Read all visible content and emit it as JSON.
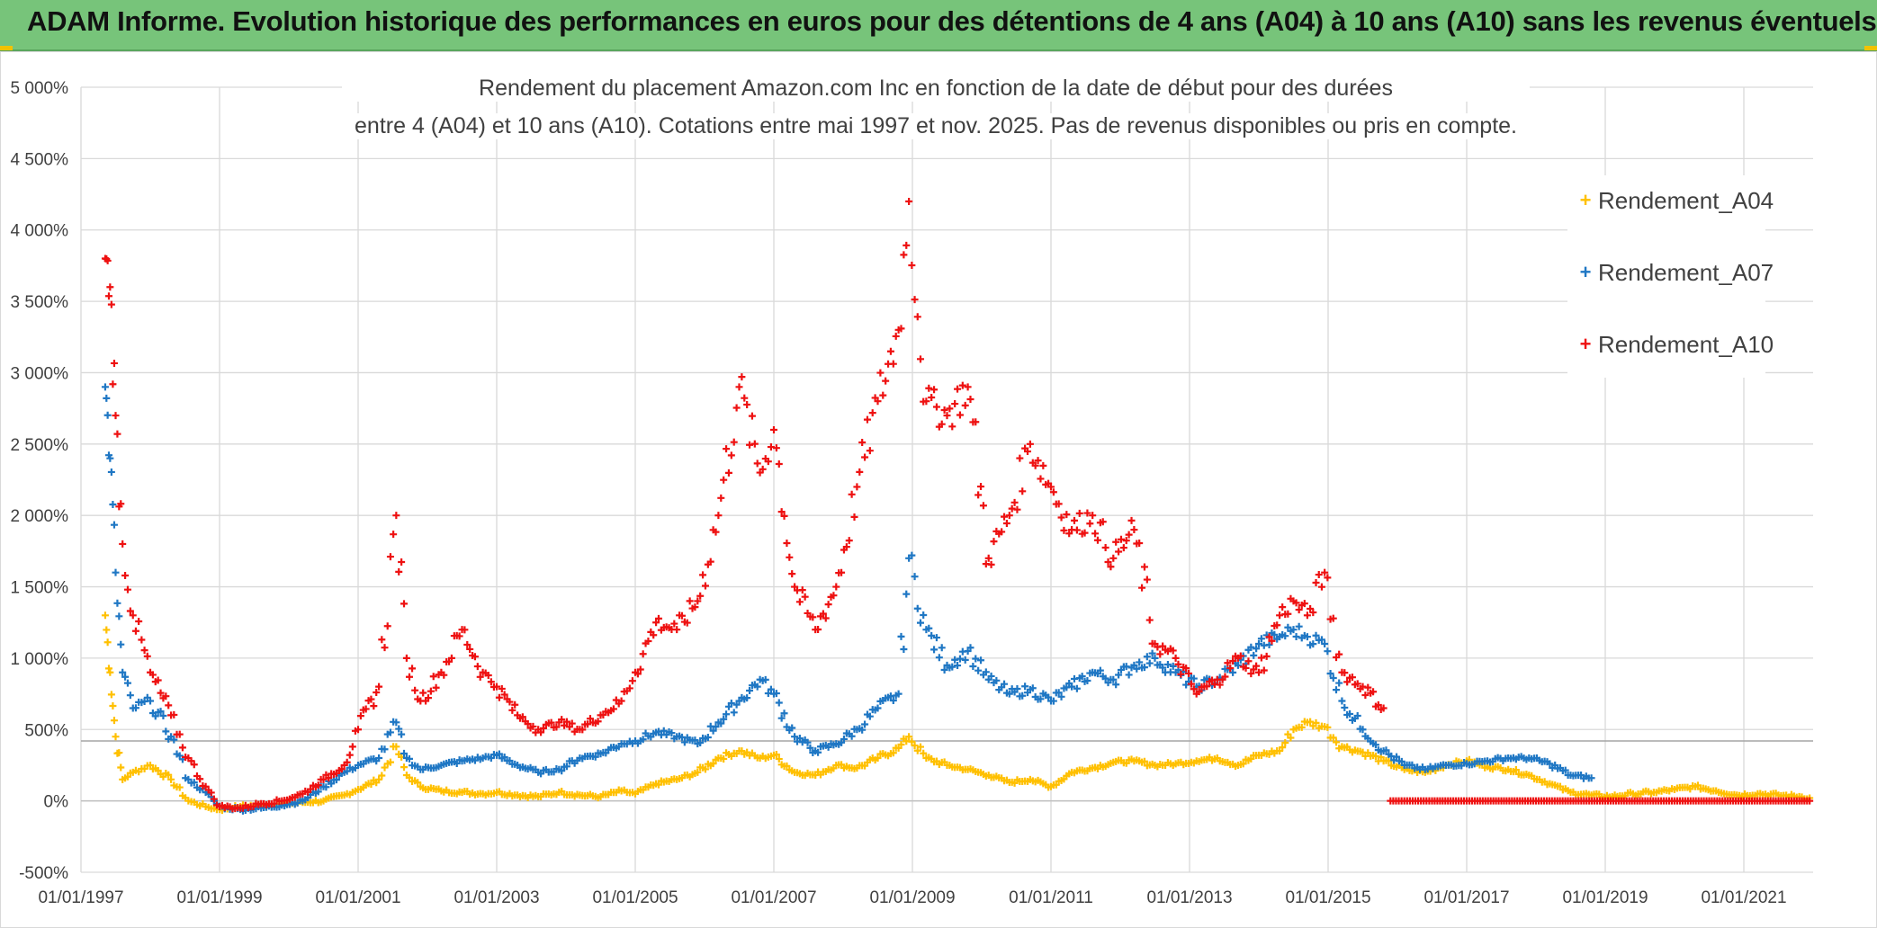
{
  "header": {
    "banner_title": "ADAM Informe. Evolution historique des performances en euros pour des détentions de 4 ans (A04) à 10 ans (A10) sans les revenus éventuels",
    "banner_color": "#77c47a"
  },
  "chart_data": {
    "type": "scatter",
    "title_line1": "Rendement du placement Amazon.com Inc en fonction de la date de début pour des durées",
    "title_line2": "entre 4 (A04) et 10 ans (A10). Cotations entre mai 1997 et nov. 2025. Pas de revenus disponibles ou pris en compte.",
    "xlabel": "",
    "ylabel": "",
    "x_tick_labels": [
      "01/01/1997",
      "01/01/1999",
      "01/01/2001",
      "01/01/2003",
      "01/01/2005",
      "01/01/2007",
      "01/01/2009",
      "01/01/2011",
      "01/01/2013",
      "01/01/2015",
      "01/01/2017",
      "01/01/2019",
      "01/01/2021"
    ],
    "y_tick_labels": [
      "-500%",
      "0%",
      "500%",
      "1 000%",
      "1 500%",
      "2 000%",
      "2 500%",
      "3 000%",
      "3 500%",
      "4 000%",
      "4 500%",
      "5 000%"
    ],
    "xlim": [
      1997.0,
      2022.0
    ],
    "ylim": [
      -500,
      5000
    ],
    "grid": true,
    "legend_position": "top-right",
    "series": [
      {
        "name": "Rendement_A04",
        "color": "#ffc000",
        "x": [
          1997.35,
          1997.42,
          1997.5,
          1997.6,
          1997.75,
          1998.0,
          1998.3,
          1998.55,
          1998.8,
          1999.0,
          1999.3,
          1999.6,
          1999.9,
          2000.2,
          2000.5,
          2000.8,
          2001.0,
          2001.3,
          2001.55,
          2001.7,
          2001.9,
          2002.2,
          2002.5,
          2002.8,
          2003.0,
          2003.3,
          2003.6,
          2003.9,
          2004.2,
          2004.5,
          2004.8,
          2005.0,
          2005.3,
          2005.6,
          2005.9,
          2006.2,
          2006.5,
          2006.8,
          2007.0,
          2007.3,
          2007.6,
          2007.9,
          2008.2,
          2008.5,
          2008.8,
          2008.95,
          2009.2,
          2009.5,
          2009.8,
          2010.1,
          2010.4,
          2010.7,
          2011.0,
          2011.3,
          2011.6,
          2011.9,
          2012.2,
          2012.5,
          2012.8,
          2013.1,
          2013.4,
          2013.7,
          2014.0,
          2014.3,
          2014.5,
          2014.7,
          2014.95,
          2015.2,
          2015.5,
          2015.8,
          2016.1,
          2016.4,
          2016.7,
          2017.0,
          2017.3,
          2017.6,
          2017.9,
          2018.2,
          2018.5,
          2018.8,
          2019.1,
          2019.4,
          2019.7,
          2020.0,
          2020.3,
          2020.6,
          2020.9,
          2021.2,
          2021.5,
          2021.8,
          2021.95
        ],
        "y": [
          1300,
          900,
          450,
          150,
          200,
          250,
          150,
          0,
          -40,
          -60,
          -40,
          -30,
          -20,
          -10,
          0,
          40,
          80,
          150,
          380,
          180,
          100,
          70,
          60,
          50,
          60,
          40,
          30,
          60,
          40,
          30,
          70,
          50,
          120,
          150,
          200,
          300,
          350,
          300,
          320,
          200,
          180,
          250,
          230,
          300,
          370,
          450,
          300,
          250,
          220,
          180,
          130,
          150,
          100,
          200,
          230,
          270,
          280,
          250,
          260,
          280,
          300,
          250,
          320,
          350,
          500,
          550,
          520,
          380,
          340,
          280,
          220,
          200,
          250,
          280,
          240,
          220,
          180,
          120,
          60,
          40,
          30,
          50,
          60,
          80,
          100,
          70,
          40,
          50,
          40,
          30,
          20
        ]
      },
      {
        "name": "Rendement_A07",
        "color": "#1f77c4",
        "x": [
          1997.35,
          1997.42,
          1997.5,
          1997.6,
          1997.75,
          1998.0,
          1998.3,
          1998.55,
          1998.8,
          1999.0,
          1999.3,
          1999.6,
          1999.9,
          2000.2,
          2000.5,
          2000.8,
          2001.0,
          2001.3,
          2001.55,
          2001.7,
          2001.9,
          2002.2,
          2002.5,
          2002.8,
          2003.0,
          2003.3,
          2003.6,
          2003.9,
          2004.2,
          2004.5,
          2004.8,
          2005.0,
          2005.3,
          2005.6,
          2005.9,
          2006.2,
          2006.5,
          2006.8,
          2007.0,
          2007.3,
          2007.6,
          2007.9,
          2008.2,
          2008.5,
          2008.8,
          2008.95,
          2009.2,
          2009.5,
          2009.8,
          2010.1,
          2010.4,
          2010.7,
          2011.0,
          2011.3,
          2011.6,
          2011.9,
          2012.2,
          2012.5,
          2012.8,
          2013.1,
          2013.4,
          2013.7,
          2014.0,
          2014.3,
          2014.5,
          2014.7,
          2014.95,
          2015.2,
          2015.5,
          2015.8,
          2016.1,
          2016.4,
          2016.7,
          2017.0,
          2017.3,
          2017.6,
          2017.9,
          2018.2,
          2018.5,
          2018.8
        ],
        "y": [
          2900,
          2400,
          1600,
          900,
          650,
          700,
          450,
          150,
          60,
          -40,
          -60,
          -50,
          -30,
          0,
          100,
          200,
          250,
          300,
          550,
          300,
          220,
          250,
          280,
          300,
          320,
          250,
          200,
          220,
          300,
          330,
          400,
          420,
          480,
          450,
          400,
          550,
          700,
          850,
          750,
          450,
          350,
          400,
          500,
          650,
          750,
          1700,
          1200,
          950,
          1050,
          850,
          750,
          780,
          700,
          800,
          900,
          850,
          950,
          1000,
          900,
          800,
          850,
          950,
          1100,
          1150,
          1200,
          1150,
          1100,
          700,
          500,
          350,
          250,
          220,
          250,
          260,
          280,
          300,
          300,
          260,
          180,
          160
        ]
      },
      {
        "name": "Rendement_A10",
        "color": "#ee1111",
        "x": [
          1997.35,
          1997.42,
          1997.5,
          1997.6,
          1997.75,
          1998.0,
          1998.3,
          1998.55,
          1998.8,
          1999.0,
          1999.3,
          1999.6,
          1999.9,
          2000.2,
          2000.5,
          2000.8,
          2001.0,
          2001.3,
          2001.55,
          2001.7,
          2001.9,
          2002.2,
          2002.5,
          2002.8,
          2003.0,
          2003.3,
          2003.6,
          2003.9,
          2004.2,
          2004.5,
          2004.8,
          2005.0,
          2005.3,
          2005.6,
          2005.9,
          2006.2,
          2006.5,
          2006.8,
          2007.0,
          2007.3,
          2007.6,
          2007.9,
          2008.2,
          2008.5,
          2008.8,
          2008.95,
          2009.2,
          2009.5,
          2009.8,
          2010.1,
          2010.4,
          2010.7,
          2011.0,
          2011.3,
          2011.6,
          2011.9,
          2012.2,
          2012.5,
          2012.8,
          2013.1,
          2013.4,
          2013.7,
          2014.0,
          2014.3,
          2014.5,
          2014.7,
          2014.95,
          2015.2,
          2015.5,
          2015.8
        ],
        "y": [
          3800,
          3600,
          2700,
          1800,
          1300,
          900,
          600,
          300,
          100,
          -40,
          -50,
          -20,
          0,
          50,
          150,
          250,
          500,
          800,
          2000,
          1000,
          700,
          900,
          1200,
          900,
          800,
          600,
          500,
          550,
          500,
          600,
          700,
          900,
          1250,
          1200,
          1400,
          2000,
          2900,
          2300,
          2600,
          1500,
          1200,
          1500,
          2200,
          2800,
          3300,
          4200,
          2800,
          2700,
          2900,
          1700,
          2000,
          2500,
          2200,
          1900,
          2000,
          1700,
          1900,
          1100,
          1000,
          750,
          850,
          1000,
          900,
          1300,
          1400,
          1300,
          1600,
          900,
          800,
          650
        ]
      },
      {
        "name": "Rendement_A10",
        "color": "#ee1111",
        "x": [
          2015.9,
          2016.5,
          2017.0,
          2017.5,
          2018.0,
          2018.5,
          2019.0,
          2019.5,
          2020.0,
          2020.5,
          2021.0,
          2021.5,
          2021.95
        ],
        "y": [
          0,
          0,
          0,
          0,
          0,
          0,
          0,
          0,
          0,
          0,
          0,
          0,
          0
        ]
      }
    ]
  }
}
